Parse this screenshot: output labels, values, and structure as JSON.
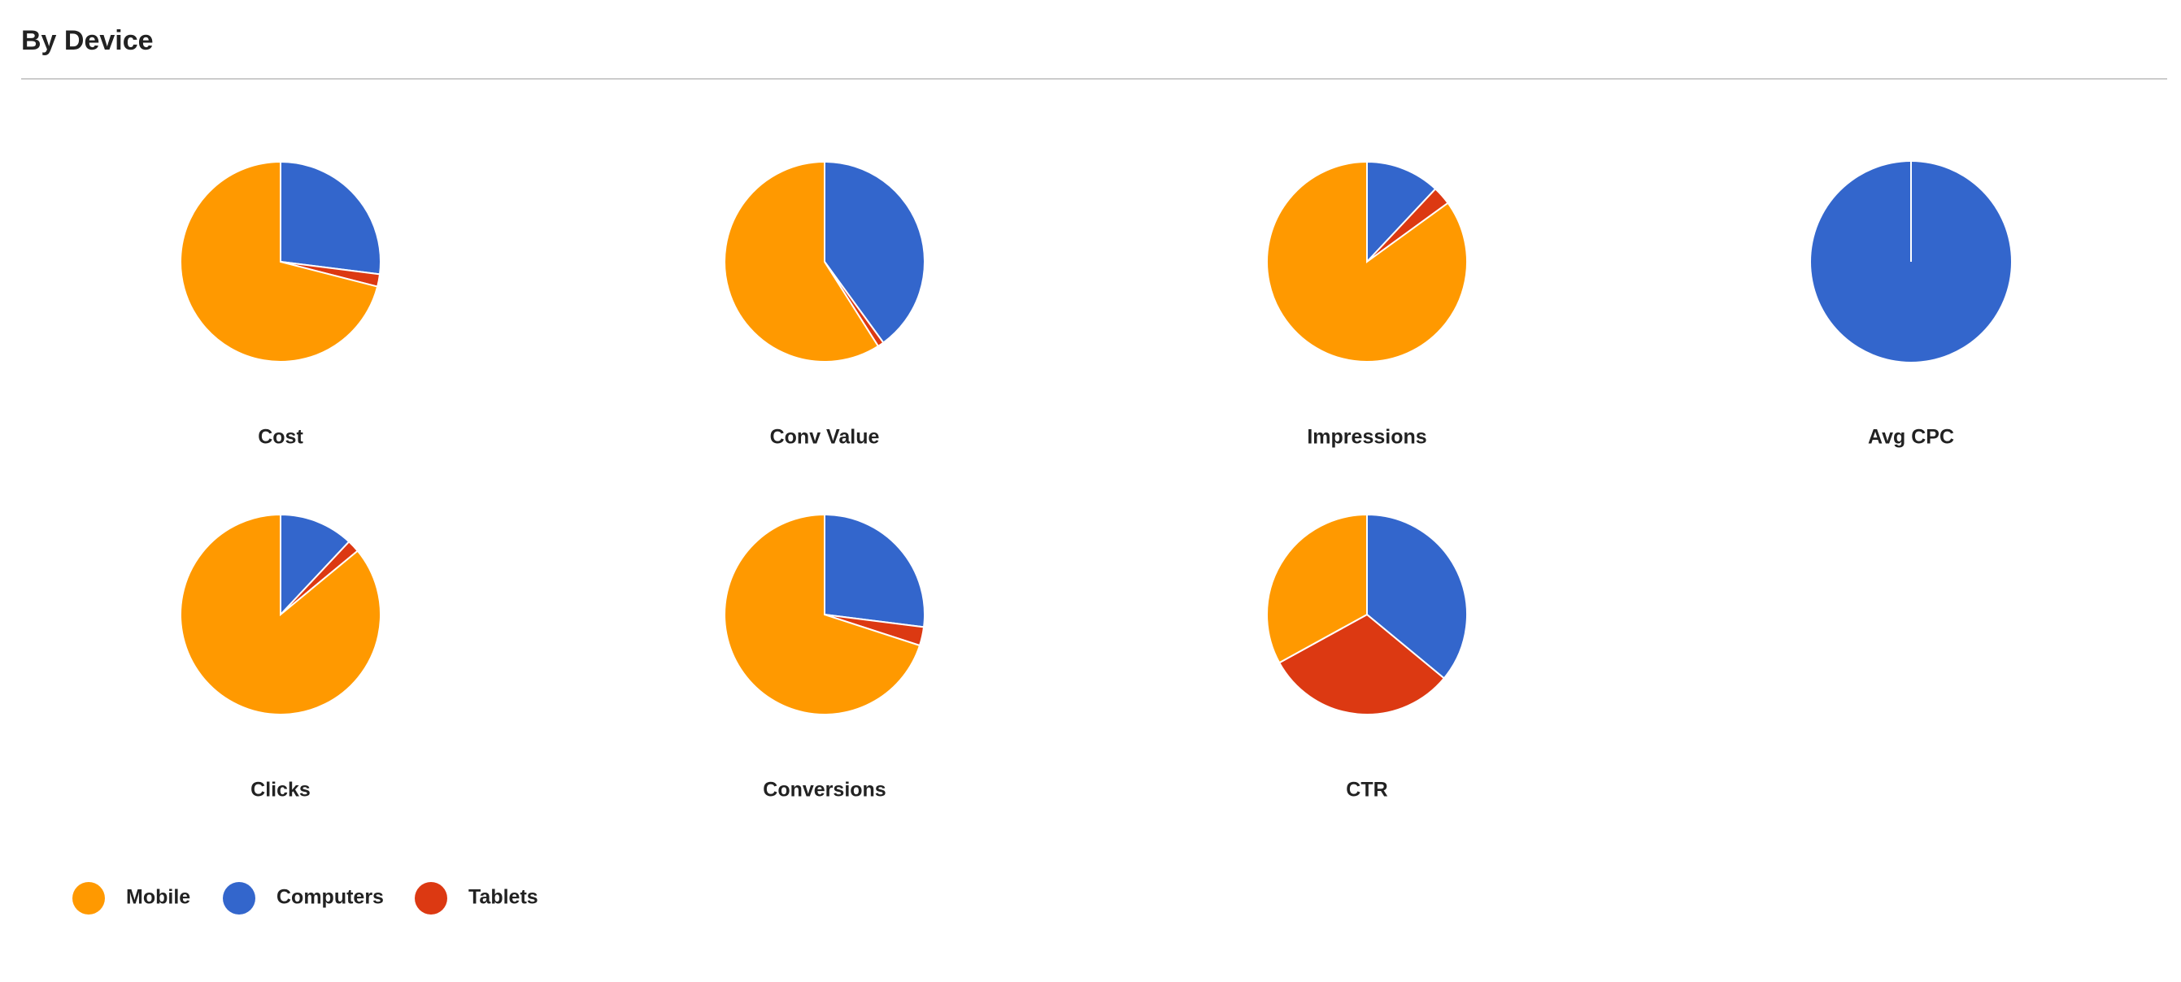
{
  "header": {
    "title": "By Device"
  },
  "chart_data": [
    {
      "type": "pie",
      "title": "Cost",
      "categories": [
        "Mobile",
        "Computers",
        "Tablets"
      ],
      "values": [
        71,
        27,
        2
      ],
      "colors": [
        "#ff9900",
        "#3366cc",
        "#dc3912"
      ]
    },
    {
      "type": "pie",
      "title": "Conv Value",
      "categories": [
        "Mobile",
        "Computers",
        "Tablets"
      ],
      "values": [
        59,
        40,
        1
      ],
      "colors": [
        "#ff9900",
        "#3366cc",
        "#dc3912"
      ]
    },
    {
      "type": "pie",
      "title": "Impressions",
      "categories": [
        "Mobile",
        "Computers",
        "Tablets"
      ],
      "values": [
        85,
        12,
        3
      ],
      "colors": [
        "#ff9900",
        "#3366cc",
        "#dc3912"
      ]
    },
    {
      "type": "pie",
      "title": "Avg CPC",
      "categories": [
        "Mobile",
        "Computers",
        "Tablets"
      ],
      "values": [
        0,
        100,
        0
      ],
      "colors": [
        "#ff9900",
        "#3366cc",
        "#dc3912"
      ]
    },
    {
      "type": "pie",
      "title": "Clicks",
      "categories": [
        "Mobile",
        "Computers",
        "Tablets"
      ],
      "values": [
        86,
        12,
        2
      ],
      "colors": [
        "#ff9900",
        "#3366cc",
        "#dc3912"
      ]
    },
    {
      "type": "pie",
      "title": "Conversions",
      "categories": [
        "Mobile",
        "Computers",
        "Tablets"
      ],
      "values": [
        70,
        27,
        3
      ],
      "colors": [
        "#ff9900",
        "#3366cc",
        "#dc3912"
      ]
    },
    {
      "type": "pie",
      "title": "CTR",
      "categories": [
        "Mobile",
        "Computers",
        "Tablets"
      ],
      "values": [
        33,
        36,
        31
      ],
      "colors": [
        "#ff9900",
        "#3366cc",
        "#dc3912"
      ]
    }
  ]
}
